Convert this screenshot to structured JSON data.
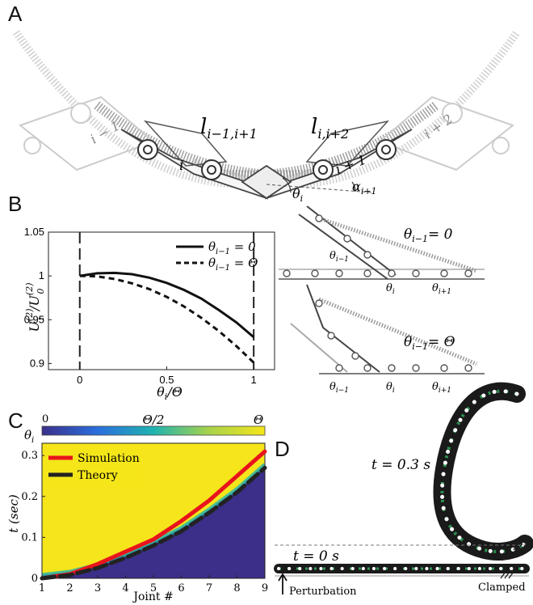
{
  "panels": {
    "A": {
      "letter": "A",
      "labels": {
        "len_left": "l",
        "len_left_sub": "i−1,i+1",
        "len_right": "l",
        "len_right_sub": "i,i+2",
        "link_im1": "i − 1",
        "link_i": "i",
        "link_ip1": "i + 1",
        "link_ip2": "i + 2",
        "theta": "θ",
        "theta_sub": "i",
        "alpha": "α",
        "alpha_sub": "i+1"
      }
    },
    "B": {
      "letter": "B",
      "schematic_top": {
        "label": "θ",
        "label_sub": "i−1",
        "label_eq": "= 0",
        "joint_a": "θ",
        "joint_a_sub": "i−1",
        "joint_b": "θ",
        "joint_b_sub": "i",
        "joint_c": "θ",
        "joint_c_sub": "i+1"
      },
      "schematic_bottom": {
        "label": "θ",
        "label_sub": "i−1",
        "label_eq": "= Θ",
        "joint_a": "θ",
        "joint_a_sub": "i−1",
        "joint_b": "θ",
        "joint_b_sub": "i",
        "joint_c": "θ",
        "joint_c_sub": "i+1"
      }
    },
    "C": {
      "letter": "C",
      "colorbar": {
        "label": "θ",
        "label_sub": "i",
        "ticks": [
          "0",
          "Θ/2",
          "Θ"
        ]
      }
    },
    "D": {
      "letter": "D",
      "time_top": "t = 0.3 s",
      "time_bottom": "t = 0 s",
      "perturbation": "Perturbation",
      "clamped": "Clamped"
    }
  },
  "chart_data": [
    {
      "panel": "B",
      "type": "line",
      "xlabel": "θ_i/Θ",
      "ylabel": "U_i^(2)/U_0^(2)",
      "xlim": [
        -0.18,
        1.12
      ],
      "ylim": [
        0.893,
        1.05
      ],
      "xticks": [
        0,
        0.5,
        1
      ],
      "xtick_labels": [
        "0",
        "0.5",
        "1"
      ],
      "yticks": [
        0.9,
        0.95,
        1,
        1.05
      ],
      "ytick_labels": [
        "0.9",
        "0.95",
        "1",
        "1.05"
      ],
      "vlines": [
        0,
        1
      ],
      "legend_position": "top-right",
      "series": [
        {
          "name": "θ_{i−1} = 0",
          "legend": "θi−1 = 0",
          "style": "solid",
          "x": [
            0,
            0.1,
            0.2,
            0.3,
            0.4,
            0.5,
            0.6,
            0.7,
            0.8,
            0.9,
            1.0
          ],
          "y": [
            1.0,
            1.003,
            1.0035,
            1.002,
            0.998,
            0.992,
            0.984,
            0.974,
            0.961,
            0.947,
            0.93
          ]
        },
        {
          "name": "θ_{i−1} = Θ",
          "legend": "θi−1 = Θ",
          "style": "dashed",
          "x": [
            0,
            0.1,
            0.2,
            0.3,
            0.4,
            0.5,
            0.6,
            0.7,
            0.8,
            0.9,
            1.0
          ],
          "y": [
            1.0,
            0.9995,
            0.9965,
            0.9915,
            0.985,
            0.976,
            0.965,
            0.952,
            0.937,
            0.92,
            0.901
          ]
        }
      ]
    },
    {
      "panel": "C",
      "type": "heatmap",
      "xlabel": "Joint #",
      "ylabel": "t (sec)",
      "xlim": [
        1,
        9
      ],
      "ylim": [
        0,
        0.33
      ],
      "xticks": [
        1,
        2,
        3,
        4,
        5,
        6,
        7,
        8,
        9
      ],
      "yticks": [
        0,
        0.1,
        0.2,
        0.3
      ],
      "ytick_labels": [
        "0",
        "0.1",
        "0.2",
        "0.3"
      ],
      "legend_position": "top-left",
      "series": [
        {
          "name": "Simulation",
          "color": "#e8141c",
          "x": [
            1,
            2,
            3,
            4,
            5,
            6,
            7,
            8,
            9
          ],
          "y": [
            0.0,
            0.01,
            0.035,
            0.065,
            0.095,
            0.14,
            0.19,
            0.25,
            0.31
          ]
        },
        {
          "name": "Theory",
          "color": "#222222",
          "style": "dashed",
          "x": [
            1,
            2,
            3,
            4,
            5,
            6,
            7,
            8,
            9
          ],
          "y": [
            0.0,
            0.008,
            0.025,
            0.05,
            0.08,
            0.115,
            0.16,
            0.21,
            0.27
          ]
        }
      ]
    }
  ],
  "colors": {
    "heat_high": "#f5e51a",
    "heat_low": "#3b2f8a",
    "sim": "#e8141c",
    "theory": "#222222"
  }
}
